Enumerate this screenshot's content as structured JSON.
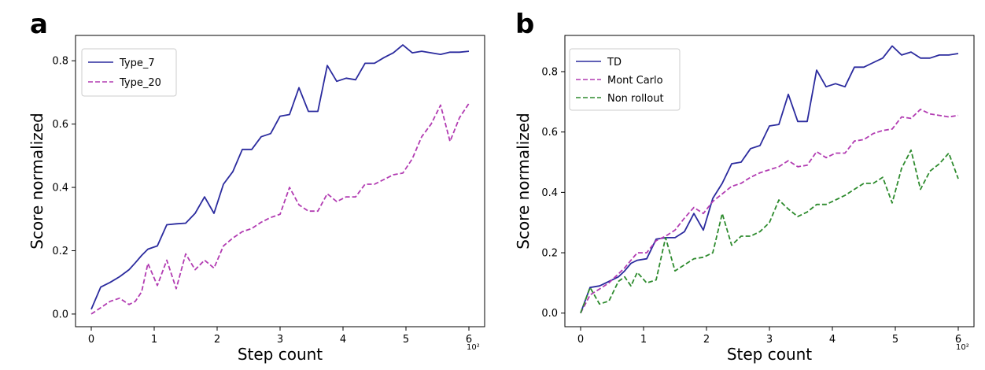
{
  "chart_data": [
    {
      "type": "line",
      "panel_label": "a",
      "title": "",
      "xlabel": "Step count",
      "ylabel": "Score normalized",
      "x_multiplier": "10²",
      "xlim": [
        -0.25,
        6.25
      ],
      "ylim": [
        -0.04,
        0.88
      ],
      "xticks": [
        0,
        1,
        2,
        3,
        4,
        5,
        6
      ],
      "yticks": [
        0.0,
        0.2,
        0.4,
        0.6,
        0.8
      ],
      "ytick_labels": [
        "0.0",
        "0.2",
        "0.4",
        "0.6",
        "0.8"
      ],
      "grid": false,
      "legend_position": "top-left",
      "x": [
        0.0,
        0.15,
        0.3,
        0.45,
        0.6,
        0.7,
        0.8,
        0.9,
        1.05,
        1.2,
        1.35,
        1.5,
        1.65,
        1.8,
        1.95,
        2.1,
        2.25,
        2.4,
        2.55,
        2.7,
        2.85,
        3.0,
        3.15,
        3.3,
        3.45,
        3.6,
        3.75,
        3.9,
        4.05,
        4.2,
        4.35,
        4.5,
        4.65,
        4.8,
        4.95,
        5.1,
        5.25,
        5.4,
        5.55,
        5.7,
        5.85,
        6.0
      ],
      "series": [
        {
          "name": "Type_7",
          "color": "#2b2b9e",
          "dash": "solid",
          "values": [
            0.015,
            0.085,
            0.1,
            0.118,
            0.14,
            0.162,
            0.185,
            0.205,
            0.215,
            0.282,
            0.285,
            0.287,
            0.318,
            0.37,
            0.318,
            0.41,
            0.45,
            0.52,
            0.52,
            0.56,
            0.57,
            0.625,
            0.63,
            0.715,
            0.64,
            0.64,
            0.785,
            0.735,
            0.745,
            0.74,
            0.792,
            0.792,
            0.81,
            0.825,
            0.85,
            0.825,
            0.83,
            0.825,
            0.82,
            0.827,
            0.827,
            0.83
          ]
        },
        {
          "name": "Type_20",
          "color": "#b23cb2",
          "dash": "dashed",
          "values": [
            0.0,
            0.02,
            0.04,
            0.05,
            0.03,
            0.04,
            0.07,
            0.16,
            0.09,
            0.17,
            0.08,
            0.19,
            0.14,
            0.17,
            0.145,
            0.215,
            0.24,
            0.26,
            0.27,
            0.29,
            0.305,
            0.315,
            0.4,
            0.345,
            0.325,
            0.325,
            0.38,
            0.355,
            0.37,
            0.37,
            0.41,
            0.41,
            0.425,
            0.44,
            0.445,
            0.49,
            0.56,
            0.6,
            0.66,
            0.545,
            0.62,
            0.665
          ]
        }
      ]
    },
    {
      "type": "line",
      "panel_label": "b",
      "title": "",
      "xlabel": "Step count",
      "ylabel": "Score normalized",
      "x_multiplier": "10²",
      "xlim": [
        -0.25,
        6.25
      ],
      "ylim": [
        -0.045,
        0.92
      ],
      "xticks": [
        0,
        1,
        2,
        3,
        4,
        5,
        6
      ],
      "yticks": [
        0.0,
        0.2,
        0.4,
        0.6,
        0.8
      ],
      "ytick_labels": [
        "0.0",
        "0.2",
        "0.4",
        "0.6",
        "0.8"
      ],
      "grid": false,
      "legend_position": "top-left",
      "x": [
        0.0,
        0.15,
        0.3,
        0.45,
        0.6,
        0.7,
        0.8,
        0.9,
        1.05,
        1.2,
        1.35,
        1.5,
        1.65,
        1.8,
        1.95,
        2.1,
        2.25,
        2.4,
        2.55,
        2.7,
        2.85,
        3.0,
        3.15,
        3.3,
        3.45,
        3.6,
        3.75,
        3.9,
        4.05,
        4.2,
        4.35,
        4.5,
        4.65,
        4.8,
        4.95,
        5.1,
        5.25,
        5.4,
        5.55,
        5.7,
        5.85,
        6.0
      ],
      "series": [
        {
          "name": "TD",
          "color": "#2b2b9e",
          "dash": "solid",
          "values": [
            0.0,
            0.085,
            0.09,
            0.105,
            0.12,
            0.14,
            0.165,
            0.175,
            0.18,
            0.245,
            0.25,
            0.25,
            0.27,
            0.33,
            0.275,
            0.38,
            0.43,
            0.495,
            0.5,
            0.545,
            0.555,
            0.62,
            0.625,
            0.725,
            0.635,
            0.635,
            0.805,
            0.75,
            0.76,
            0.75,
            0.815,
            0.815,
            0.83,
            0.845,
            0.885,
            0.855,
            0.865,
            0.845,
            0.845,
            0.855,
            0.855,
            0.86
          ]
        },
        {
          "name": "Mont Carlo",
          "color": "#b23cb2",
          "dash": "dashed",
          "values": [
            0.0,
            0.06,
            0.08,
            0.1,
            0.13,
            0.15,
            0.175,
            0.2,
            0.2,
            0.24,
            0.255,
            0.275,
            0.315,
            0.35,
            0.33,
            0.37,
            0.395,
            0.42,
            0.43,
            0.45,
            0.465,
            0.475,
            0.485,
            0.505,
            0.485,
            0.49,
            0.535,
            0.515,
            0.53,
            0.53,
            0.57,
            0.575,
            0.595,
            0.605,
            0.61,
            0.65,
            0.645,
            0.675,
            0.66,
            0.655,
            0.65,
            0.655
          ]
        },
        {
          "name": "Non rollout",
          "color": "#2e8b2e",
          "dash": "dashed",
          "values": [
            0.0,
            0.085,
            0.03,
            0.04,
            0.105,
            0.12,
            0.09,
            0.135,
            0.1,
            0.11,
            0.25,
            0.14,
            0.16,
            0.18,
            0.185,
            0.2,
            0.33,
            0.225,
            0.255,
            0.255,
            0.27,
            0.3,
            0.375,
            0.345,
            0.32,
            0.335,
            0.36,
            0.36,
            0.375,
            0.39,
            0.41,
            0.43,
            0.43,
            0.45,
            0.365,
            0.48,
            0.54,
            0.41,
            0.47,
            0.495,
            0.53,
            0.445
          ]
        }
      ]
    }
  ]
}
